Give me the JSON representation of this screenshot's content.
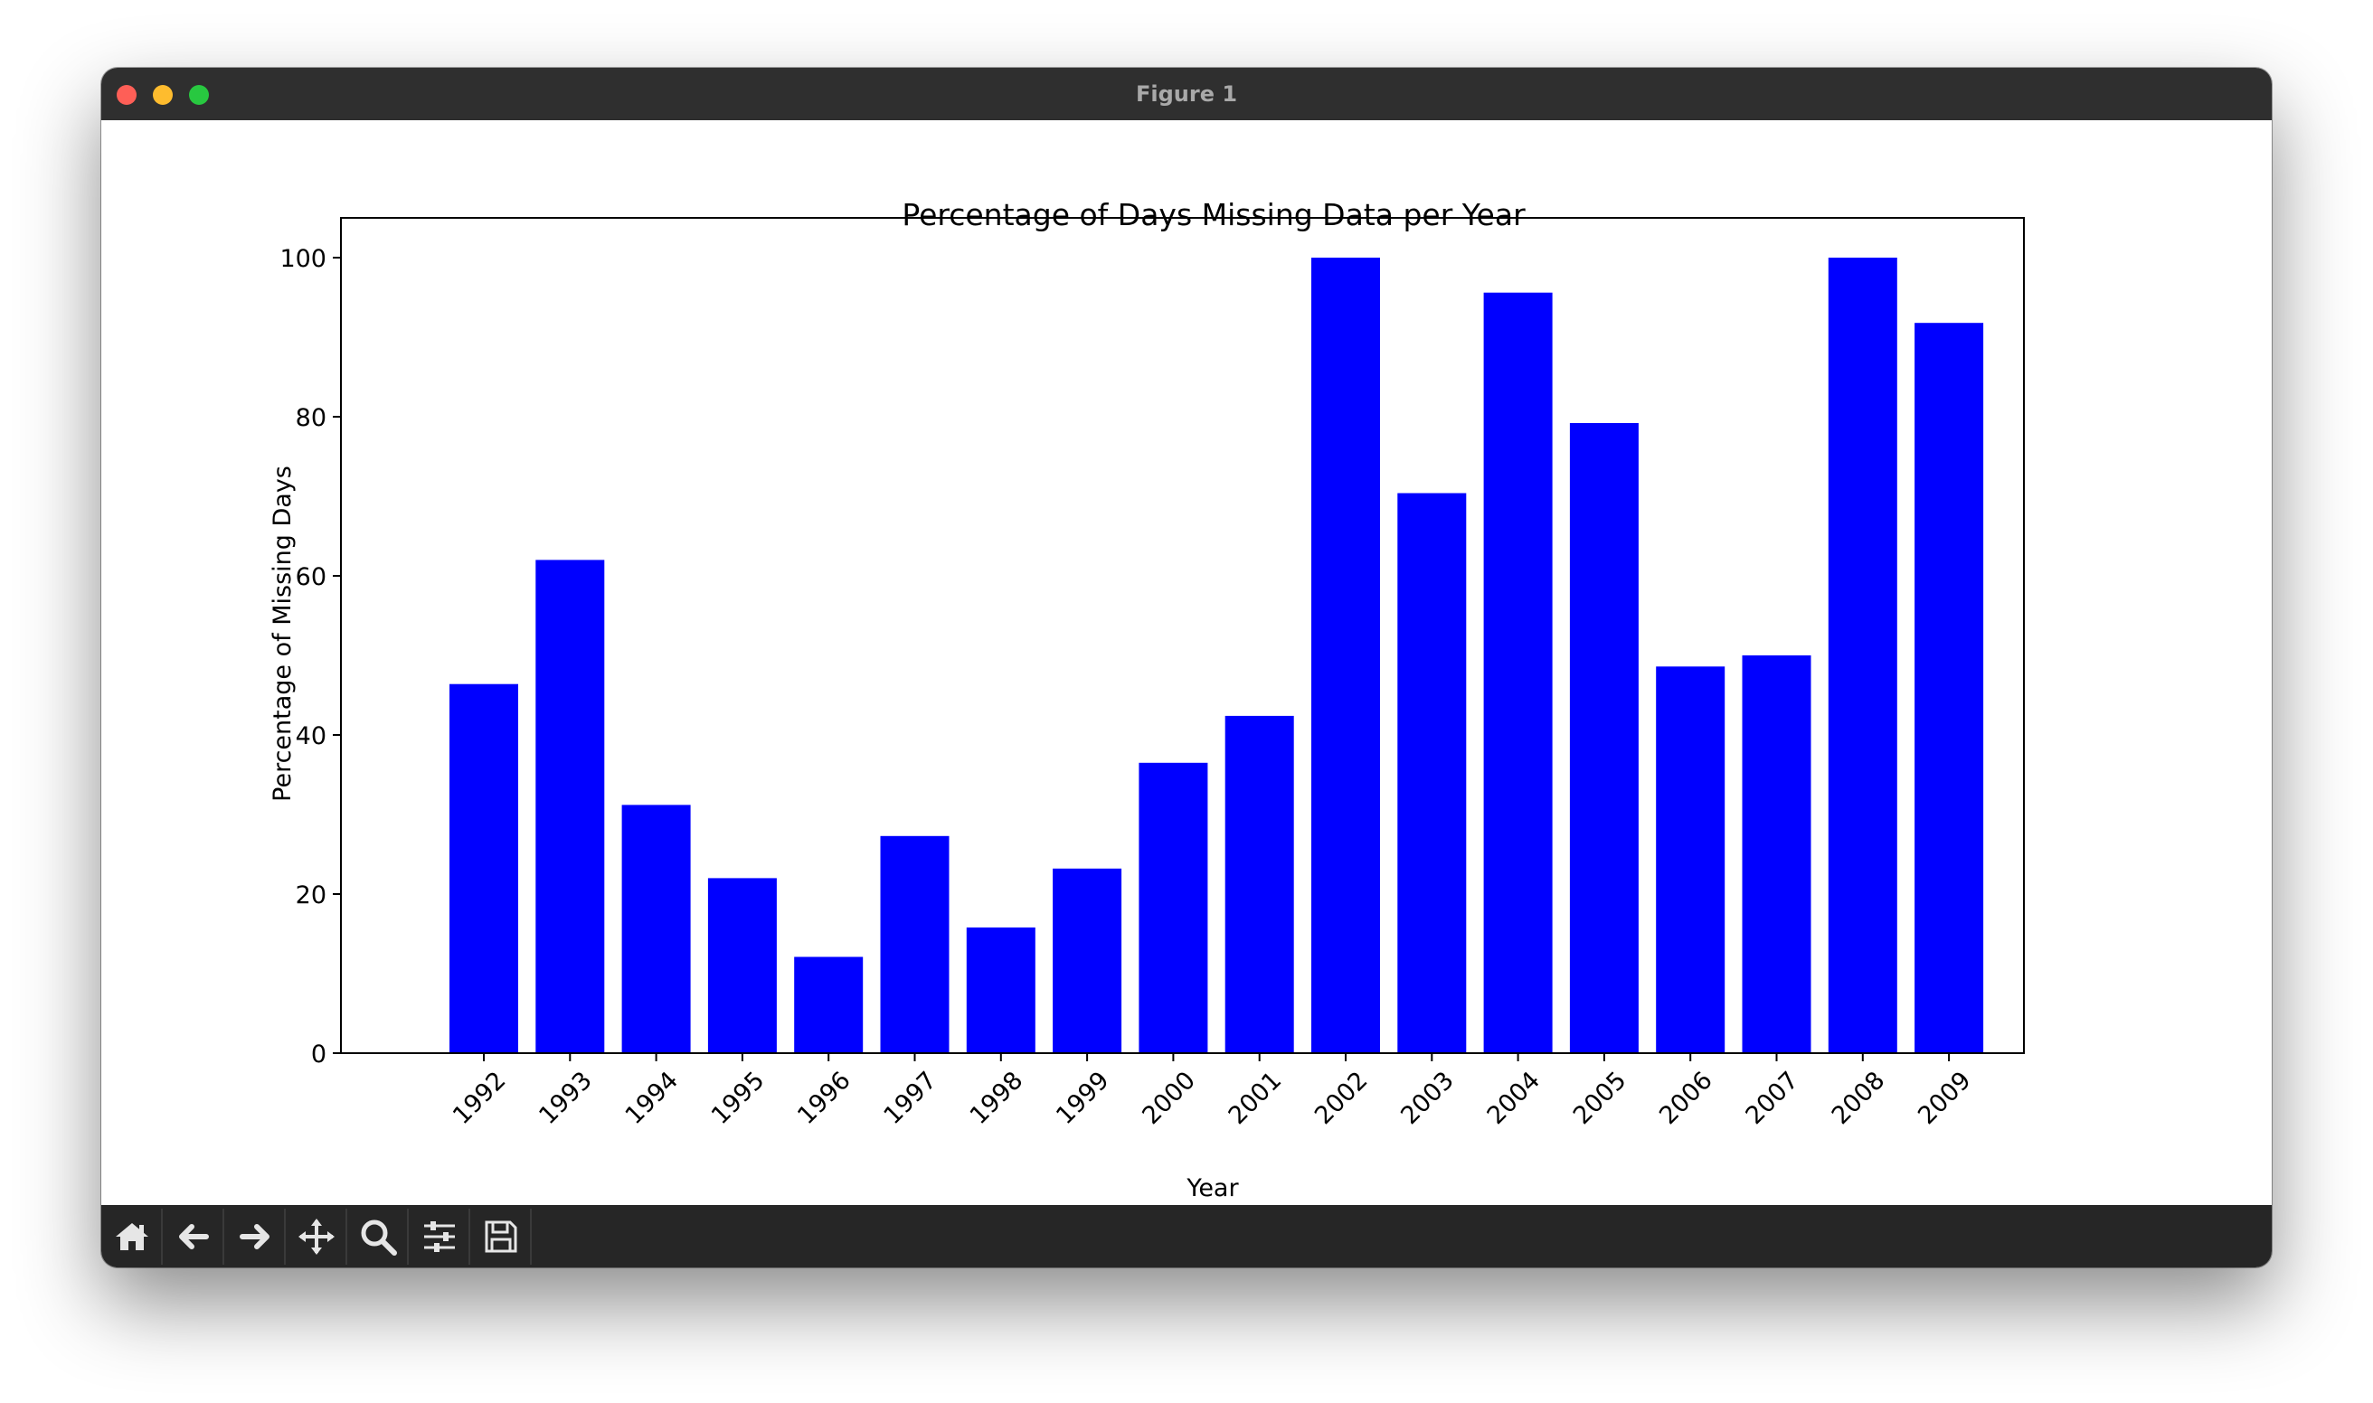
{
  "window": {
    "title": "Figure 1"
  },
  "toolbar": {
    "tools": [
      "home-icon",
      "back-arrow-icon",
      "forward-arrow-icon",
      "pan-move-icon",
      "zoom-magnifier-icon",
      "configure-subplots-icon",
      "save-floppy-icon"
    ]
  },
  "colors": {
    "bar": "#0000ff",
    "titlebar": "#2f2f2f",
    "toolbar": "#262626"
  },
  "chart_data": {
    "type": "bar",
    "title": "Percentage of Days Missing Data per Year",
    "xlabel": "Year",
    "ylabel": "Percentage of Missing Days",
    "categories": [
      "1992",
      "1993",
      "1994",
      "1995",
      "1996",
      "1997",
      "1998",
      "1999",
      "2000",
      "2001",
      "2002",
      "2003",
      "2004",
      "2005",
      "2006",
      "2007",
      "2008",
      "2009"
    ],
    "values": [
      46.4,
      62.0,
      31.2,
      22.0,
      12.1,
      27.3,
      15.8,
      23.2,
      36.5,
      42.4,
      100.0,
      70.4,
      95.6,
      79.2,
      48.6,
      50.0,
      100.0,
      91.8
    ],
    "yticks": [
      "0",
      "20",
      "40",
      "60",
      "80",
      "100"
    ],
    "ylim": [
      0,
      105
    ],
    "bar_color": "#0000ff",
    "grid": false
  }
}
